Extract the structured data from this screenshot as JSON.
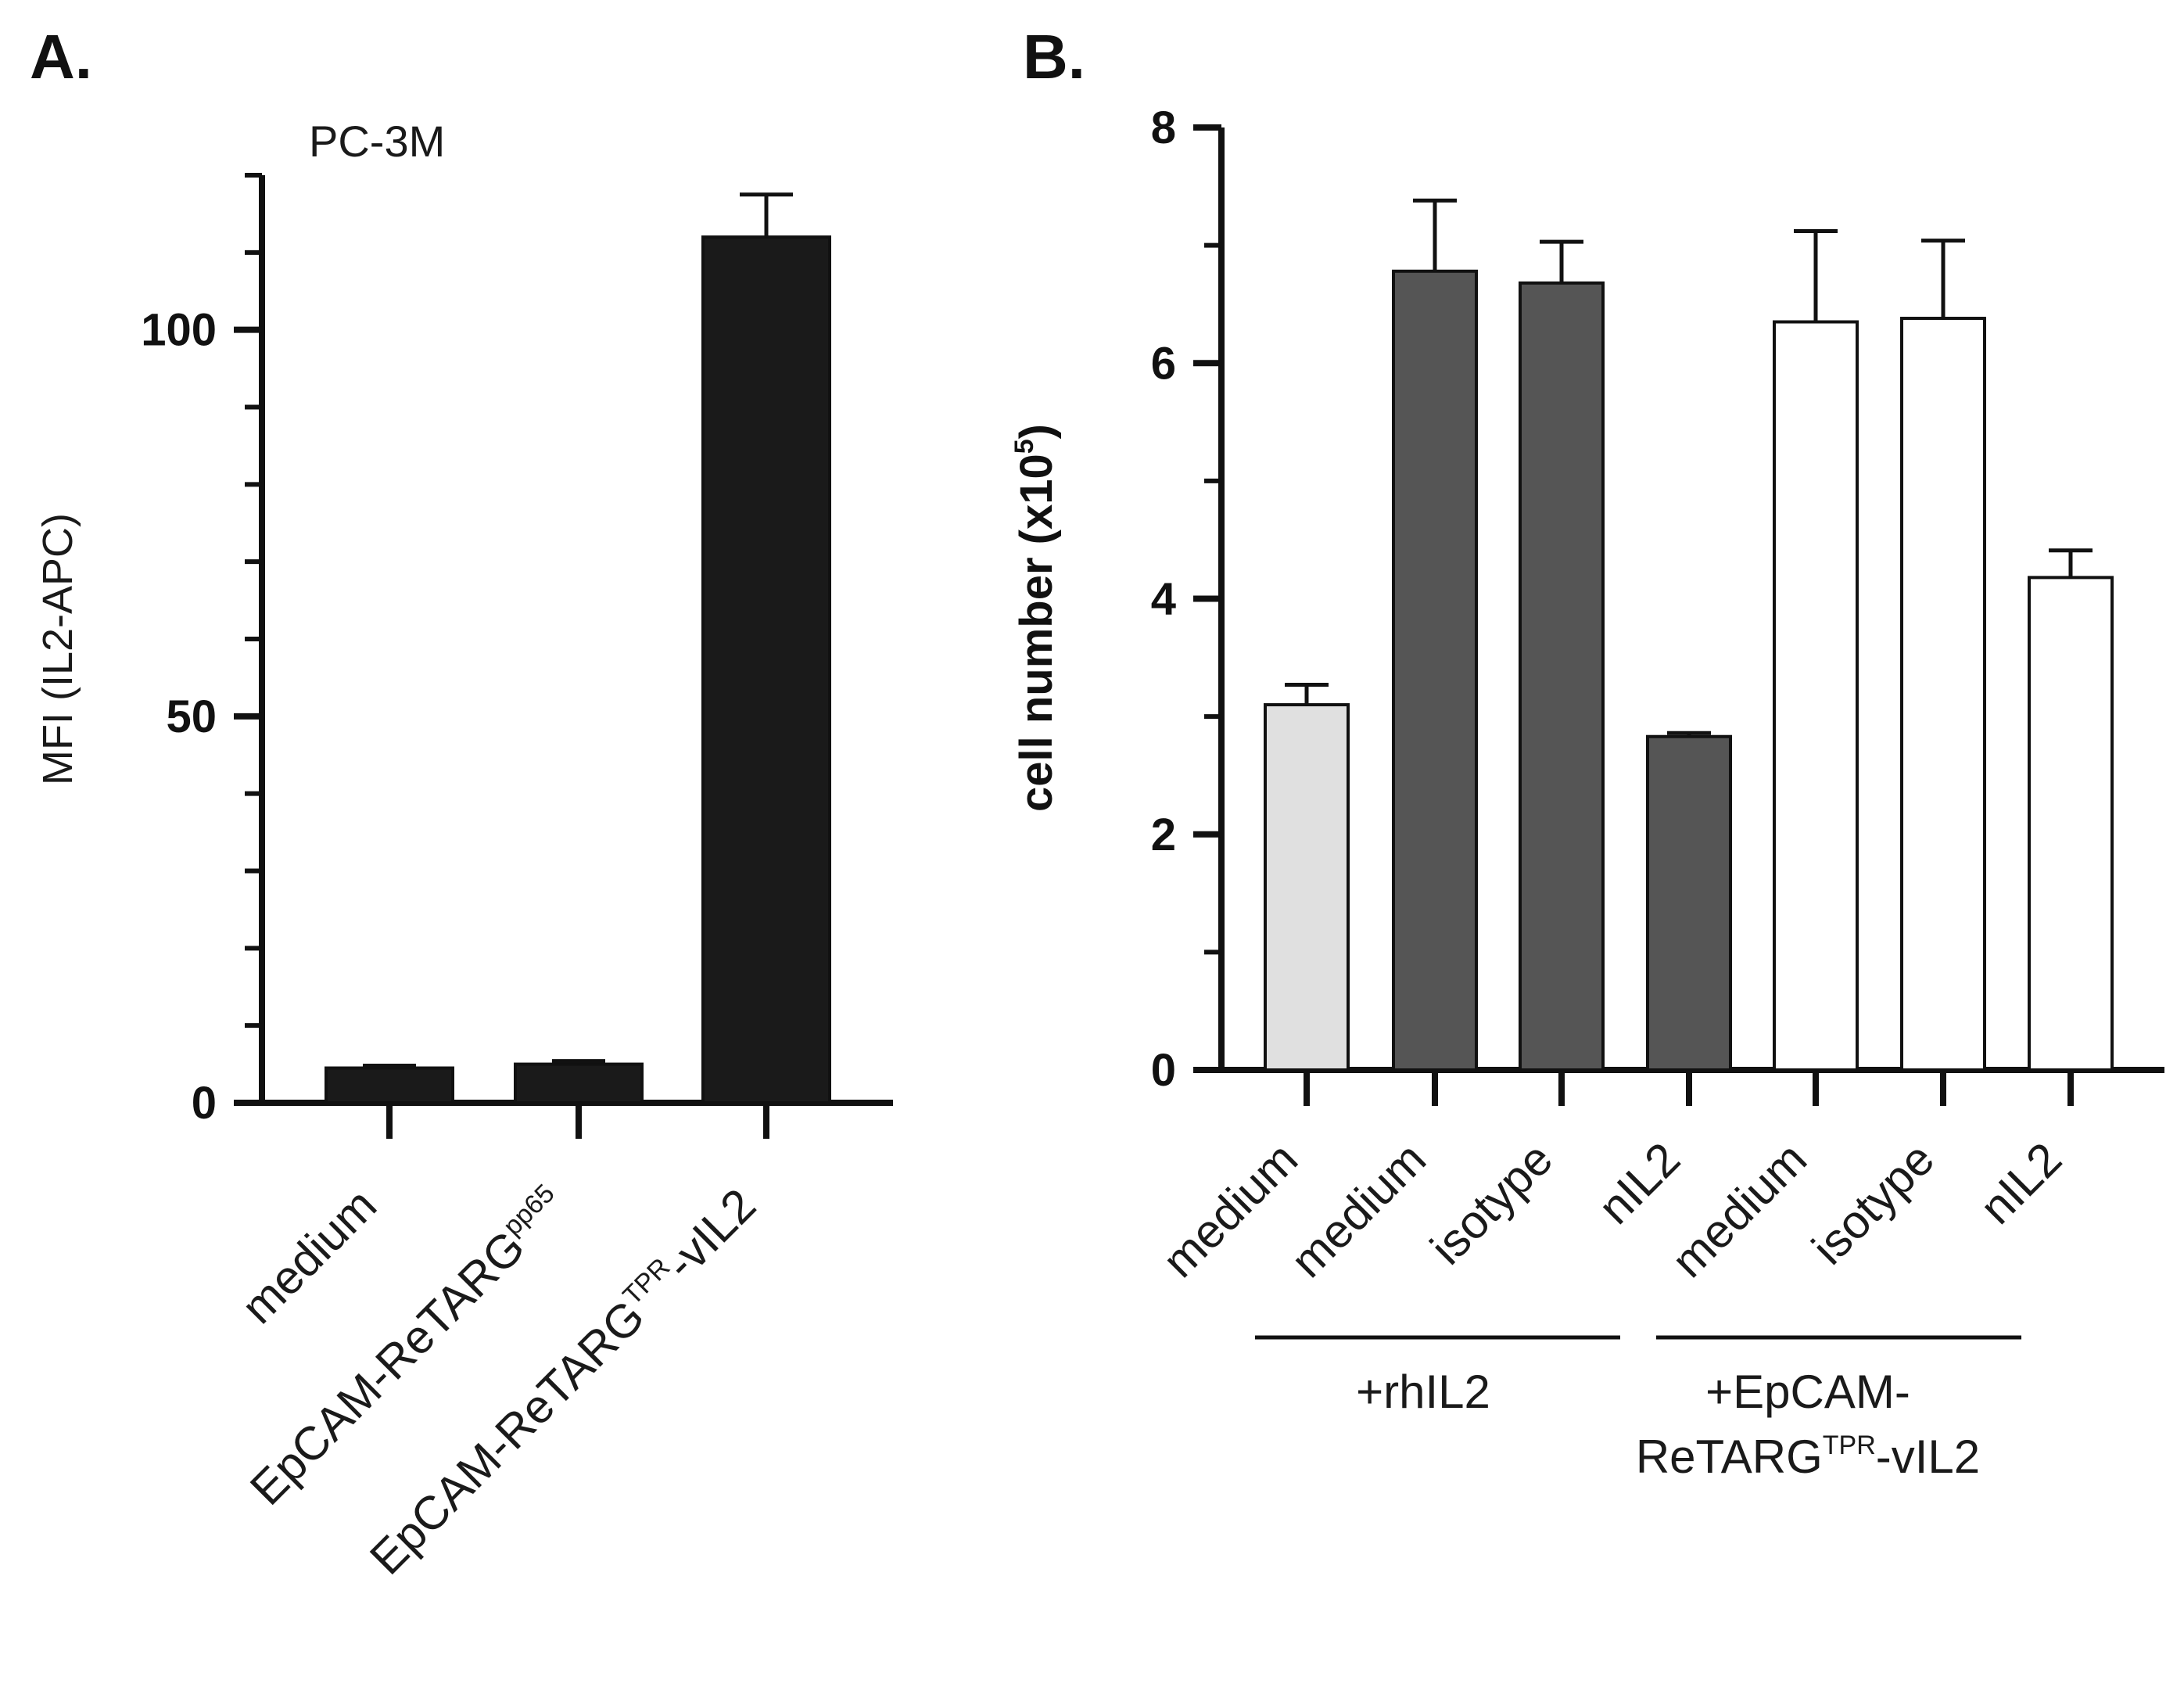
{
  "chart_data": [
    {
      "panel": "A.",
      "type": "bar",
      "title": "PC-3M",
      "ylabel": "MFI (IL2-APC)",
      "xlabel": "",
      "ylim": [
        0,
        120
      ],
      "major_ticks": [
        0,
        50,
        100
      ],
      "minor_ticks": [
        10,
        20,
        30,
        40,
        60,
        70,
        80,
        90,
        110,
        120
      ],
      "grid": false,
      "categories": [
        {
          "base": "medium",
          "sup": "",
          "suffix": ""
        },
        {
          "base": "EpCAM-ReTARG",
          "sup": "pp65",
          "suffix": ""
        },
        {
          "base": "EpCAM-ReTARG",
          "sup": "TPR",
          "suffix": "-vIL2"
        }
      ],
      "values": [
        4.5,
        5.0,
        112
      ],
      "errors": [
        0.3,
        0.4,
        5.5
      ],
      "bar_colors": [
        "#1a1a1a",
        "#1a1a1a",
        "#1a1a1a"
      ]
    },
    {
      "panel": "B.",
      "type": "bar",
      "title": "",
      "ylabel": {
        "base": "cell number (x10",
        "sup": "5",
        "suffix": ")"
      },
      "xlabel": "",
      "ylim": [
        0,
        8
      ],
      "major_ticks": [
        0,
        2,
        4,
        6,
        8
      ],
      "minor_ticks": [
        1,
        3,
        5,
        7
      ],
      "grid": false,
      "categories": [
        "medium",
        "medium",
        "isotype",
        "nIL2",
        "medium",
        "isotype",
        "nIL2"
      ],
      "values": [
        3.1,
        6.78,
        6.68,
        2.83,
        6.35,
        6.38,
        4.18
      ],
      "errors": [
        0.17,
        0.6,
        0.35,
        0.03,
        0.77,
        0.66,
        0.23
      ],
      "bar_colors": [
        "#e0e0e0",
        "#555555",
        "#555555",
        "#555555",
        "#ffffff",
        "#ffffff",
        "#ffffff"
      ],
      "groups": [
        {
          "lines": [
            {
              "base": "+rhIL2",
              "sup": "",
              "suffix": ""
            }
          ],
          "from_index": 1,
          "to_index": 3
        },
        {
          "lines": [
            {
              "base": "+EpCAM-",
              "sup": "",
              "suffix": ""
            },
            {
              "base": "ReTARG",
              "sup": "TPR",
              "suffix": "-vIL2"
            }
          ],
          "from_index": 4,
          "to_index": 6
        }
      ]
    }
  ]
}
